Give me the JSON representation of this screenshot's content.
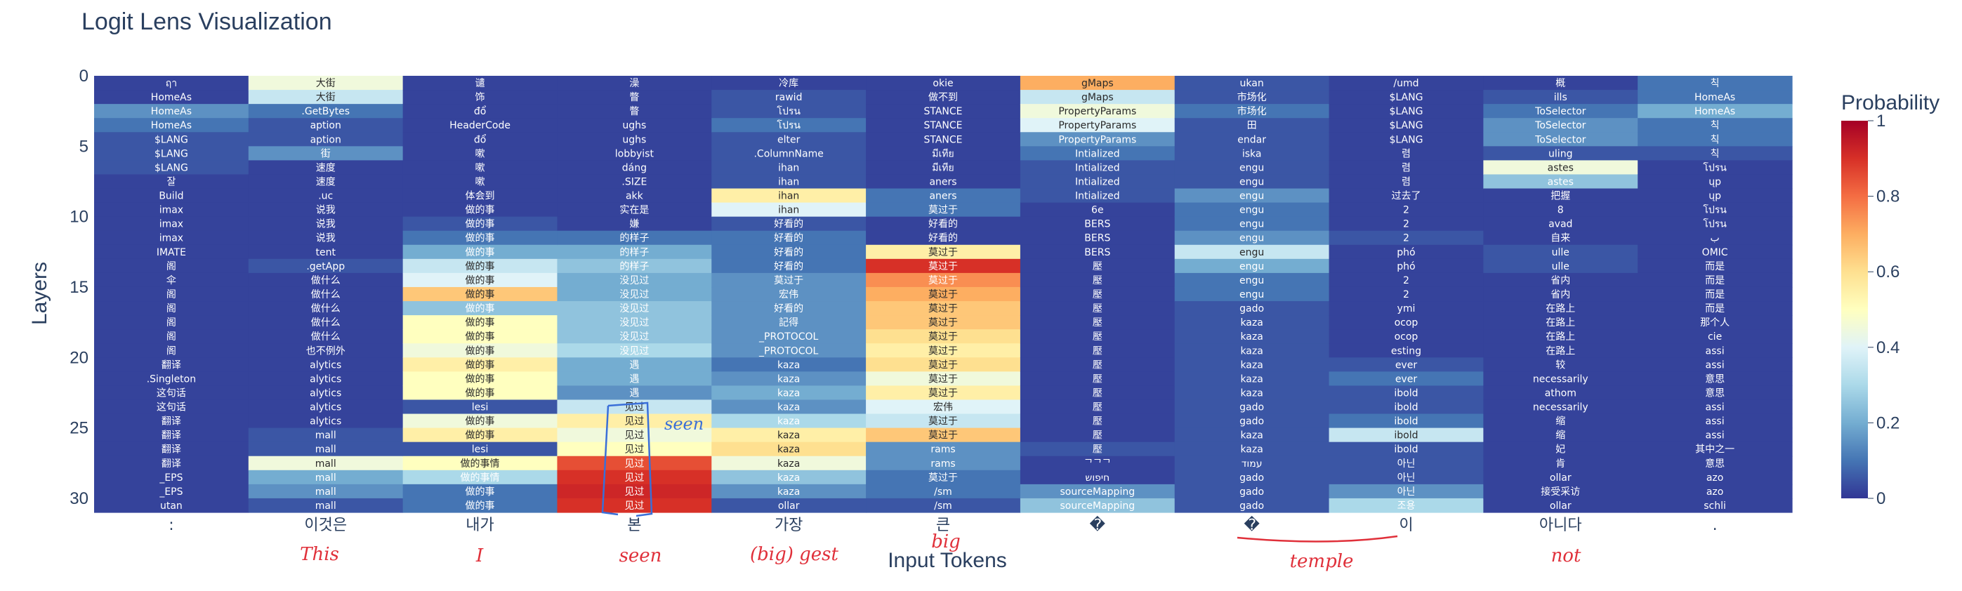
{
  "title": "Logit Lens Visualization",
  "chart_data": {
    "type": "heatmap",
    "xlabel": "Input Tokens",
    "ylabel": "Layers",
    "x_tokens": [
      ":",
      "이것은",
      "내가",
      "본",
      "가장",
      "큰",
      "�",
      "�",
      "이",
      "아니다",
      "."
    ],
    "y_ticks": [
      0,
      5,
      10,
      15,
      20,
      25,
      30
    ],
    "colorbar": {
      "title": "Probability",
      "ticks": [
        0,
        0.2,
        0.4,
        0.6,
        0.8,
        1
      ],
      "colorscale": "RdYlBu_r"
    },
    "layers": 31,
    "columns": [
      {
        "tokens": [
          "ฤา",
          "HomeAs",
          "HomeAs",
          "HomeAs",
          "$LANG",
          "$LANG",
          "$LANG",
          "잘",
          "Build",
          "imax",
          "imax",
          "imax",
          "IMATE",
          "阁",
          "伞",
          "阁",
          "阁",
          "阁",
          "阁",
          "阁",
          "翻译",
          ".Singleton",
          "这句话",
          "这句话",
          "翻译",
          "翻译",
          "翻译",
          "翻译",
          "_EPS",
          "_EPS",
          "utan"
        ],
        "probs": [
          0.02,
          0.02,
          0.15,
          0.1,
          0.05,
          0.05,
          0.05,
          0.02,
          0.02,
          0.02,
          0.02,
          0.02,
          0.02,
          0.02,
          0.02,
          0.02,
          0.02,
          0.02,
          0.02,
          0.02,
          0.02,
          0.02,
          0.02,
          0.02,
          0.02,
          0.02,
          0.02,
          0.02,
          0.02,
          0.02,
          0.02
        ]
      },
      {
        "tokens": [
          "大街",
          "大街",
          ".GetBytes",
          "aption",
          "aption",
          "街",
          "速度",
          "速度",
          ".uc",
          "说我",
          "说我",
          "说我",
          "tent",
          ".getApp",
          "做什么",
          "做什么",
          "做什么",
          "做什么",
          "做什么",
          "也不例外",
          "alytics",
          "alytics",
          "alytics",
          "alytics",
          "alytics",
          "mall",
          "mall",
          "mall",
          "mall",
          "mall",
          "mall"
        ],
        "probs": [
          0.45,
          0.35,
          0.1,
          0.05,
          0.05,
          0.15,
          0.02,
          0.02,
          0.02,
          0.02,
          0.02,
          0.02,
          0.02,
          0.05,
          0.02,
          0.02,
          0.02,
          0.02,
          0.02,
          0.02,
          0.02,
          0.02,
          0.02,
          0.02,
          0.02,
          0.05,
          0.05,
          0.45,
          0.2,
          0.15,
          0.05
        ]
      },
      {
        "tokens": [
          "谴",
          "饰",
          "đổ",
          "HeaderCode",
          "đổ",
          "嗽",
          "嗽",
          "嗽",
          "体会到",
          "做的事",
          "做的事",
          "做的事",
          "做的事",
          "做的事",
          "做的事",
          "做的事",
          "做的事",
          "做的事",
          "做的事",
          "做的事",
          "做的事",
          "做的事",
          "做的事",
          "lesi",
          "做的事",
          "做的事",
          "lesi",
          "做的事情",
          "做的事情",
          "做的事",
          "做的事"
        ],
        "probs": [
          0.02,
          0.02,
          0.02,
          0.02,
          0.02,
          0.02,
          0.02,
          0.02,
          0.02,
          0.02,
          0.05,
          0.1,
          0.2,
          0.35,
          0.4,
          0.65,
          0.25,
          0.5,
          0.5,
          0.45,
          0.55,
          0.5,
          0.5,
          0.05,
          0.45,
          0.55,
          0.05,
          0.5,
          0.3,
          0.1,
          0.1
        ]
      },
      {
        "tokens": [
          "澡",
          "瞥",
          "瞥",
          "ughs",
          "ughs",
          "lobbyist",
          "dáng",
          ".SIZE",
          "akk",
          "实在是",
          "嫌",
          "的样子",
          "的样子",
          "的样子",
          "没见过",
          "没见过",
          "没见过",
          "没见过",
          "没见过",
          "没见过",
          "遇",
          "遇",
          "遇",
          "见过",
          "见过",
          "见过",
          "见过",
          "见过",
          "见过",
          "见过",
          "见过"
        ],
        "probs": [
          0.02,
          0.02,
          0.02,
          0.02,
          0.02,
          0.02,
          0.02,
          0.02,
          0.02,
          0.02,
          0.02,
          0.1,
          0.2,
          0.25,
          0.2,
          0.2,
          0.25,
          0.25,
          0.25,
          0.3,
          0.2,
          0.2,
          0.15,
          0.35,
          0.55,
          0.45,
          0.5,
          0.85,
          0.9,
          0.92,
          0.9
        ]
      },
      {
        "tokens": [
          "冷库",
          "rawid",
          "โปรน",
          "โปรน",
          "elter",
          ".ColumnName",
          "ihan",
          "ihan",
          "ihan",
          "ihan",
          "好看的",
          "好看的",
          "好看的",
          "好看的",
          "莫过于",
          "宏伟",
          "好看的",
          "記得",
          "_PROTOCOL",
          "_PROTOCOL",
          "kaza",
          "kaza",
          "kaza",
          "kaza",
          "kaza",
          "kaza",
          "kaza",
          "kaza",
          "kaza",
          "kaza",
          "ollar"
        ],
        "probs": [
          0.02,
          0.05,
          0.05,
          0.1,
          0.05,
          0.05,
          0.05,
          0.05,
          0.55,
          0.4,
          0.05,
          0.1,
          0.1,
          0.1,
          0.15,
          0.15,
          0.15,
          0.15,
          0.15,
          0.15,
          0.1,
          0.15,
          0.2,
          0.15,
          0.3,
          0.55,
          0.6,
          0.45,
          0.25,
          0.15,
          0.05
        ]
      },
      {
        "tokens": [
          "okie",
          "做不到",
          "STANCE",
          "STANCE",
          "STANCE",
          "มีเทีย",
          "มีเทีย",
          "aners",
          "aners",
          "莫过于",
          "好看的",
          "好看的",
          "莫过于",
          "莫过于",
          "莫过于",
          "莫过于",
          "莫过于",
          "莫过于",
          "莫过于",
          "莫过于",
          "莫过于",
          "莫过于",
          "莫过于",
          "宏伟",
          "莫过于",
          "莫过于",
          "rams",
          "rams",
          "莫过于",
          "/sm",
          "/sm"
        ],
        "probs": [
          0.02,
          0.02,
          0.02,
          0.02,
          0.02,
          0.02,
          0.02,
          0.02,
          0.1,
          0.1,
          0.02,
          0.02,
          0.55,
          0.9,
          0.75,
          0.7,
          0.65,
          0.65,
          0.6,
          0.55,
          0.6,
          0.45,
          0.55,
          0.4,
          0.35,
          0.65,
          0.15,
          0.15,
          0.1,
          0.1,
          0.05
        ]
      },
      {
        "tokens": [
          "gMaps",
          "gMaps",
          "PropertyParams",
          "PropertyParams",
          "PropertyParams",
          "Intialized",
          "Intialized",
          "Intialized",
          "Intialized",
          "6e",
          "BERS",
          "BERS",
          "BERS",
          "壓",
          "壓",
          "壓",
          "壓",
          "壓",
          "壓",
          "壓",
          "壓",
          "壓",
          "壓",
          "壓",
          "壓",
          "壓",
          "壓",
          "ᄀᄀᄀ",
          "חיפוש",
          "sourceMapping",
          "sourceMapping"
        ],
        "probs": [
          0.7,
          0.35,
          0.45,
          0.4,
          0.15,
          0.1,
          0.05,
          0.05,
          0.05,
          0.02,
          0.02,
          0.02,
          0.02,
          0.02,
          0.02,
          0.02,
          0.02,
          0.02,
          0.02,
          0.02,
          0.02,
          0.02,
          0.02,
          0.02,
          0.02,
          0.02,
          0.05,
          0.02,
          0.02,
          0.15,
          0.25
        ]
      },
      {
        "tokens": [
          "ukan",
          "市场化",
          "市场化",
          "田",
          "endar",
          "iska",
          "engu",
          "engu",
          "engu",
          "engu",
          "engu",
          "engu",
          "engu",
          "engu",
          "engu",
          "engu",
          "gado",
          "kaza",
          "kaza",
          "kaza",
          "kaza",
          "kaza",
          "kaza",
          "gado",
          "gado",
          "kaza",
          "kaza",
          "עמוד",
          "gado",
          "gado",
          "gado"
        ],
        "probs": [
          0.05,
          0.05,
          0.1,
          0.05,
          0.05,
          0.05,
          0.05,
          0.05,
          0.15,
          0.1,
          0.1,
          0.15,
          0.35,
          0.2,
          0.1,
          0.1,
          0.05,
          0.05,
          0.05,
          0.05,
          0.05,
          0.05,
          0.05,
          0.05,
          0.05,
          0.05,
          0.05,
          0.05,
          0.05,
          0.05,
          0.05
        ]
      },
      {
        "tokens": [
          "/umd",
          "$LANG",
          "$LANG",
          "$LANG",
          "$LANG",
          "렴",
          "렴",
          "렴",
          "过去了",
          "2",
          "2",
          "2",
          "phó",
          "phó",
          "2",
          "2",
          "ymi",
          "ocop",
          "ocop",
          "esting",
          "ever",
          "ever",
          "ibold",
          "ibold",
          "ibold",
          "ibold",
          "ibold",
          "아닌",
          "아닌",
          "아닌",
          "조용"
        ],
        "probs": [
          0.02,
          0.02,
          0.02,
          0.02,
          0.02,
          0.02,
          0.02,
          0.02,
          0.02,
          0.02,
          0.02,
          0.05,
          0.02,
          0.02,
          0.02,
          0.02,
          0.02,
          0.02,
          0.02,
          0.02,
          0.05,
          0.1,
          0.05,
          0.05,
          0.1,
          0.35,
          0.05,
          0.05,
          0.05,
          0.15,
          0.3
        ]
      },
      {
        "tokens": [
          "概",
          "ills",
          "ToSelector",
          "ToSelector",
          "ToSelector",
          "uling",
          "astes",
          "astes",
          "把握",
          "8",
          "avad",
          "自来",
          "ulle",
          "ulle",
          "省内",
          "省内",
          "在路上",
          "在路上",
          "在路上",
          "在路上",
          "较",
          "necessarily",
          "athom",
          "necessarily",
          "缩",
          "缩",
          "妃",
          "肯",
          "ollar",
          "接受采访",
          "ollar"
        ],
        "probs": [
          0.02,
          0.05,
          0.1,
          0.15,
          0.15,
          0.05,
          0.45,
          0.25,
          0.02,
          0.02,
          0.02,
          0.02,
          0.05,
          0.05,
          0.02,
          0.02,
          0.02,
          0.02,
          0.02,
          0.02,
          0.02,
          0.02,
          0.02,
          0.02,
          0.02,
          0.02,
          0.02,
          0.02,
          0.02,
          0.02,
          0.02
        ]
      },
      {
        "tokens": [
          "칙",
          "HomeAs",
          "HomeAs",
          "칙",
          "칙",
          "칙",
          "โปรน",
          "ųp",
          "ųp",
          "โปรน",
          "โปรน",
          "ب",
          "OMIC",
          "而是",
          "而是",
          "而是",
          "而是",
          "那个人",
          "cie",
          "assi",
          "assi",
          "意思",
          "意思",
          "assi",
          "assi",
          "assi",
          "其中之一",
          "意思",
          "azo",
          "azo",
          "schli"
        ],
        "probs": [
          0.1,
          0.1,
          0.2,
          0.1,
          0.1,
          0.05,
          0.02,
          0.02,
          0.02,
          0.02,
          0.02,
          0.02,
          0.02,
          0.02,
          0.02,
          0.02,
          0.02,
          0.02,
          0.02,
          0.02,
          0.02,
          0.02,
          0.02,
          0.02,
          0.02,
          0.02,
          0.02,
          0.02,
          0.02,
          0.02,
          0.02
        ]
      }
    ]
  },
  "annotations": {
    "seen_label": "seen",
    "handwritten": [
      {
        "text": "This"
      },
      {
        "text": "I"
      },
      {
        "text": "seen"
      },
      {
        "text": "(big) gest"
      },
      {
        "text": "big"
      },
      {
        "text": "temple"
      },
      {
        "text": "not"
      }
    ]
  }
}
